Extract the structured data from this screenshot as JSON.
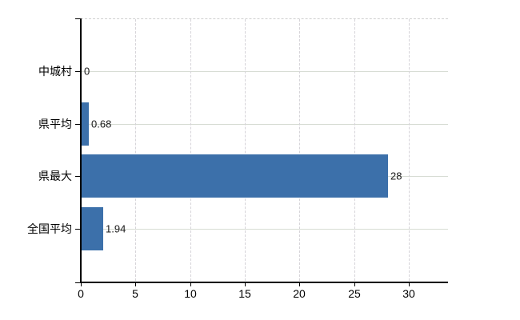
{
  "chart_data": {
    "type": "bar",
    "orientation": "horizontal",
    "title": "",
    "xlabel": "",
    "ylabel": "",
    "categories": [
      "中城村",
      "県平均",
      "県最大",
      "全国平均"
    ],
    "values": [
      0,
      0.68,
      28,
      1.94
    ],
    "value_labels": [
      "0",
      "0.68",
      "28",
      "1.94"
    ],
    "xticks": [
      0,
      5,
      10,
      15,
      20,
      25,
      30
    ],
    "xtick_labels": [
      "0",
      "5",
      "10",
      "15",
      "20",
      "25",
      "30"
    ],
    "xlim": [
      0,
      33.6
    ],
    "grid": "on",
    "legend": "none",
    "colors": {
      "bar": "#3c70aa",
      "axis": "#000000",
      "vertical_gridline": "#d5d3d8",
      "horizontal_gridline": "#d7dcd3",
      "top_border": "#cfcfcf",
      "text": "#000000",
      "value_text": "#1a1a1a",
      "background": "#ffffff"
    }
  }
}
